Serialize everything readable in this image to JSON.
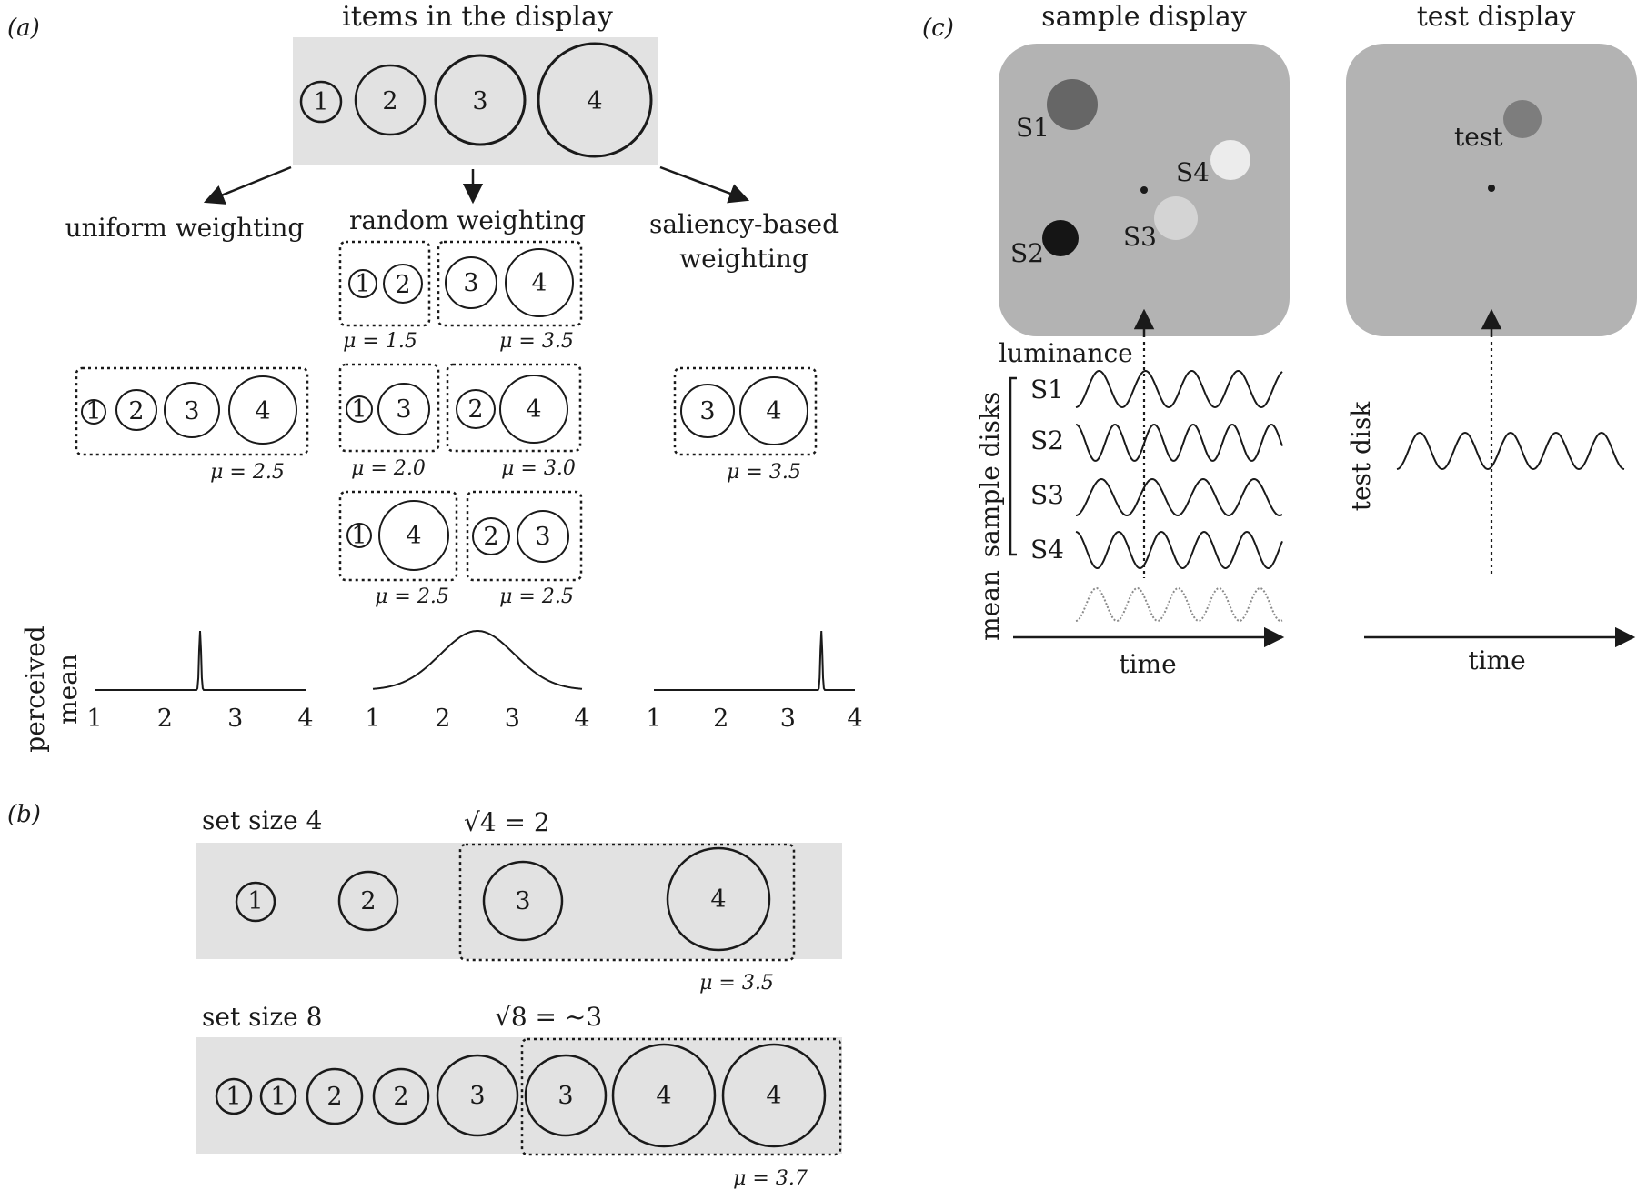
{
  "panel_a": {
    "label": "(a)",
    "items_title": "items in the display",
    "items": [
      "1",
      "2",
      "3",
      "4"
    ],
    "uniform": {
      "title": "uniform weighting",
      "group": [
        "1",
        "2",
        "3",
        "4"
      ],
      "mu": "μ = 2.5"
    },
    "random": {
      "title": "random weighting",
      "pairs": [
        {
          "items": [
            "1",
            "2"
          ],
          "mu": "μ = 1.5"
        },
        {
          "items": [
            "3",
            "4"
          ],
          "mu": "μ = 3.5"
        },
        {
          "items": [
            "1",
            "3"
          ],
          "mu": "μ = 2.0"
        },
        {
          "items": [
            "2",
            "4"
          ],
          "mu": "μ = 3.0"
        },
        {
          "items": [
            "1",
            "4"
          ],
          "mu": "μ = 2.5"
        },
        {
          "items": [
            "2",
            "3"
          ],
          "mu": "μ = 2.5"
        }
      ]
    },
    "saliency": {
      "title_line1": "saliency-based",
      "title_line2": "weighting",
      "group": [
        "3",
        "4"
      ],
      "mu": "μ = 3.5"
    },
    "ylabel_line1": "perceived",
    "ylabel_line2": "mean",
    "axis_ticks": [
      "1",
      "2",
      "3",
      "4"
    ],
    "distributions": {
      "uniform_peak": 2.5,
      "random_center": 2.5,
      "saliency_peak": 3.5
    }
  },
  "panel_b": {
    "label": "(b)",
    "rows": [
      {
        "title": "set size 4",
        "formula": "√4 = 2",
        "items": [
          "1",
          "2",
          "3",
          "4"
        ],
        "mu": "μ = 3.5"
      },
      {
        "title": "set size 8",
        "formula": "√8 = ~3",
        "items": [
          "1",
          "1",
          "2",
          "2",
          "3",
          "3",
          "4",
          "4"
        ],
        "mu": "μ = 3.7"
      }
    ]
  },
  "panel_c": {
    "label": "(c)",
    "sample_title": "sample display",
    "test_title": "test display",
    "disks": [
      {
        "label": "S1",
        "color": "#666666"
      },
      {
        "label": "S2",
        "color": "#151515"
      },
      {
        "label": "S3",
        "color": "#d4d4d4"
      },
      {
        "label": "S4",
        "color": "#ececec"
      }
    ],
    "test_disk": {
      "label": "test",
      "color": "#7d7d7d"
    },
    "luminance_label": "luminance",
    "sample_disks_label": "sample disks",
    "wave_labels": [
      "S1",
      "S2",
      "S3",
      "S4"
    ],
    "mean_label": "mean",
    "test_disk_label": "test disk",
    "time_label": "time",
    "colors": {
      "display_bg": "#b3b3b3",
      "row_bg": "#e2e2e2"
    }
  }
}
